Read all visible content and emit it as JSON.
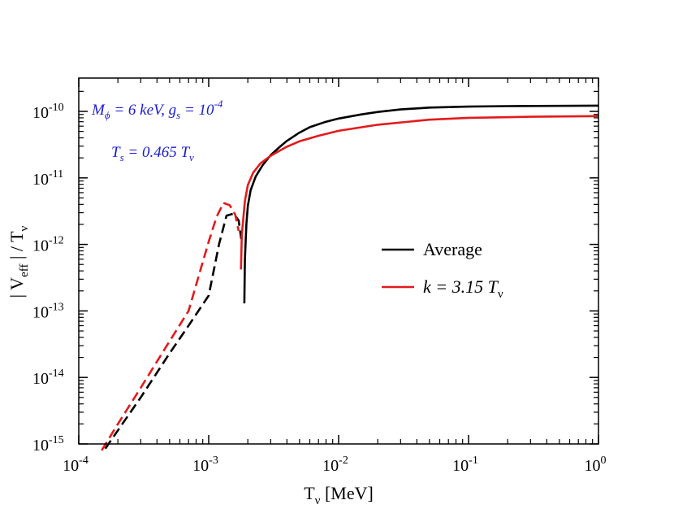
{
  "chart_data": {
    "type": "line",
    "title": "",
    "xlabel": {
      "main": "T",
      "sub": "ν",
      "rest": " [MeV]"
    },
    "ylabel": {
      "pre": "| V",
      "sub": "eff",
      "post": " | / T",
      "sub2": "ν"
    },
    "xscale": "log",
    "yscale": "log",
    "xlim": [
      0.0001,
      1
    ],
    "ylim": [
      1e-15,
      3e-10
    ],
    "grid": false,
    "x_ticks": [
      {
        "value": 0.0001,
        "base": "10",
        "exp": "-4"
      },
      {
        "value": 0.001,
        "base": "10",
        "exp": "-3"
      },
      {
        "value": 0.01,
        "base": "10",
        "exp": "-2"
      },
      {
        "value": 0.1,
        "base": "10",
        "exp": "-1"
      },
      {
        "value": 1,
        "base": "10",
        "exp": "0"
      }
    ],
    "y_ticks": [
      {
        "value": 1e-15,
        "base": "10",
        "exp": "-15"
      },
      {
        "value": 1e-14,
        "base": "10",
        "exp": "-14"
      },
      {
        "value": 1e-13,
        "base": "10",
        "exp": "-13"
      },
      {
        "value": 1e-12,
        "base": "10",
        "exp": "-12"
      },
      {
        "value": 1e-11,
        "base": "10",
        "exp": "-11"
      },
      {
        "value": 1e-10,
        "base": "10",
        "exp": "-10"
      }
    ],
    "annotations": {
      "line1": {
        "M": "M",
        "M_sub": "ϕ",
        "M_rest": " = 6 keV,   g",
        "g_sub": "s",
        "g_rest": " = 10",
        "g_exp": "-4"
      },
      "line2": {
        "T": "T",
        "T_sub": "s",
        "rest": " = 0.465 T",
        "nu_sub": "ν"
      }
    },
    "legend": {
      "position": "center-right",
      "entries": [
        {
          "label": "Average",
          "color": "#000000"
        },
        {
          "label_pre": "k = 3.15 T",
          "label_sub": "ν",
          "color": "#e31a1c"
        }
      ]
    },
    "series": [
      {
        "name": "Average (dashed branch)",
        "color": "#000000",
        "dash": true,
        "x": [
          0.00016,
          0.0002,
          0.0003,
          0.0005,
          0.0007,
          0.001,
          0.0012,
          0.00137,
          0.00155,
          0.0017,
          0.00178
        ],
        "y": [
          8.5e-16,
          1.6e-15,
          5e-15,
          2.3e-14,
          6e-14,
          1.7e-13,
          1e-12,
          2.7e-12,
          2.9e-12,
          2.3e-12,
          1.2e-12
        ]
      },
      {
        "name": "Average (solid branch)",
        "color": "#000000",
        "dash": false,
        "x": [
          0.00188,
          0.0019,
          0.00195,
          0.002,
          0.0021,
          0.0023,
          0.0026,
          0.003,
          0.0035,
          0.004,
          0.005,
          0.006,
          0.008,
          0.01,
          0.015,
          0.02,
          0.03,
          0.05,
          0.1,
          0.2,
          0.5,
          1
        ],
        "y": [
          1.3e-13,
          6e-13,
          2e-12,
          3.8e-12,
          6.5e-12,
          1.05e-11,
          1.55e-11,
          2.2e-11,
          2.9e-11,
          3.6e-11,
          4.8e-11,
          5.8e-11,
          7e-11,
          7.8e-11,
          9e-11,
          9.8e-11,
          1.07e-10,
          1.14e-10,
          1.18e-10,
          1.2e-10,
          1.21e-10,
          1.22e-10
        ]
      },
      {
        "name": "k = 3.15 T_nu (dashed branch)",
        "color": "#e31a1c",
        "dash": true,
        "x": [
          0.00015,
          0.0002,
          0.0003,
          0.0005,
          0.0007,
          0.001,
          0.00115,
          0.0013,
          0.00145,
          0.0016,
          0.0017
        ],
        "y": [
          8e-16,
          2e-15,
          7e-15,
          3.5e-14,
          1e-13,
          1.1e-12,
          2.6e-12,
          4.2e-12,
          3.9e-12,
          2.8e-12,
          1.6e-12
        ]
      },
      {
        "name": "k = 3.15 T_nu (solid branch)",
        "color": "#e31a1c",
        "dash": false,
        "x": [
          0.00177,
          0.0018,
          0.0019,
          0.002,
          0.0022,
          0.0025,
          0.003,
          0.0035,
          0.004,
          0.005,
          0.007,
          0.01,
          0.02,
          0.05,
          0.1,
          0.3,
          1
        ],
        "y": [
          4.2e-13,
          1.4e-12,
          4.5e-12,
          7.8e-12,
          1.2e-11,
          1.65e-11,
          2.15e-11,
          2.55e-11,
          2.95e-11,
          3.55e-11,
          4.3e-11,
          5.1e-11,
          6.3e-11,
          7.5e-11,
          8e-11,
          8.3e-11,
          8.5e-11
        ]
      }
    ]
  }
}
